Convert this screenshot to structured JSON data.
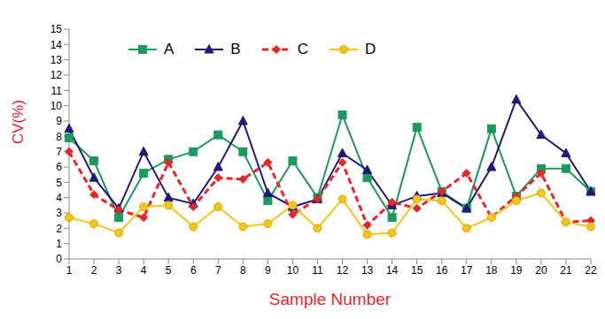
{
  "chart_data": {
    "type": "line",
    "x_label": "Sample Number",
    "y_label": "CV(%)",
    "categories": [
      "1",
      "2",
      "3",
      "4",
      "5",
      "6",
      "7",
      "8",
      "9",
      "10",
      "11",
      "12",
      "13",
      "14",
      "15",
      "16",
      "17",
      "18",
      "19",
      "20",
      "21",
      "22"
    ],
    "series": [
      {
        "name": "A",
        "color": "#1a9a5c",
        "marker": "square",
        "line_style": "solid",
        "values": [
          7.9,
          6.4,
          2.7,
          5.6,
          6.5,
          7.0,
          8.1,
          7.0,
          3.8,
          6.4,
          4.0,
          9.4,
          5.3,
          2.7,
          8.6,
          4.4,
          3.3,
          8.5,
          4.1,
          5.9,
          5.9,
          4.4
        ]
      },
      {
        "name": "B",
        "color": "#1f1a7a",
        "marker": "triangle",
        "line_style": "solid",
        "values": [
          8.5,
          5.3,
          3.3,
          7.0,
          4.0,
          3.6,
          6.0,
          9.0,
          4.3,
          3.4,
          3.9,
          6.9,
          5.8,
          3.5,
          4.1,
          4.3,
          3.3,
          6.0,
          10.4,
          8.1,
          6.9,
          4.4
        ]
      },
      {
        "name": "C",
        "color": "#e8262a",
        "marker": "diamond",
        "line_style": "dashed",
        "values": [
          7.0,
          4.2,
          3.2,
          2.7,
          6.3,
          3.4,
          5.3,
          5.2,
          6.3,
          2.9,
          3.9,
          6.3,
          2.2,
          3.7,
          3.3,
          4.4,
          5.6,
          2.7,
          4.1,
          5.6,
          2.4,
          2.5
        ]
      },
      {
        "name": "D",
        "color": "#f5c518",
        "marker": "circle",
        "line_style": "solid",
        "values": [
          2.7,
          2.3,
          1.7,
          3.4,
          3.5,
          2.1,
          3.4,
          2.1,
          2.3,
          3.5,
          2.0,
          3.9,
          1.6,
          1.7,
          3.9,
          3.8,
          2.0,
          2.7,
          3.8,
          4.3,
          2.4,
          2.1
        ]
      }
    ],
    "ylim": [
      0,
      15
    ],
    "yticks": [
      0,
      1,
      2,
      3,
      4,
      5,
      6,
      7,
      8,
      9,
      10,
      11,
      12,
      13,
      14,
      15
    ],
    "grid": false,
    "legend": "upper left"
  }
}
